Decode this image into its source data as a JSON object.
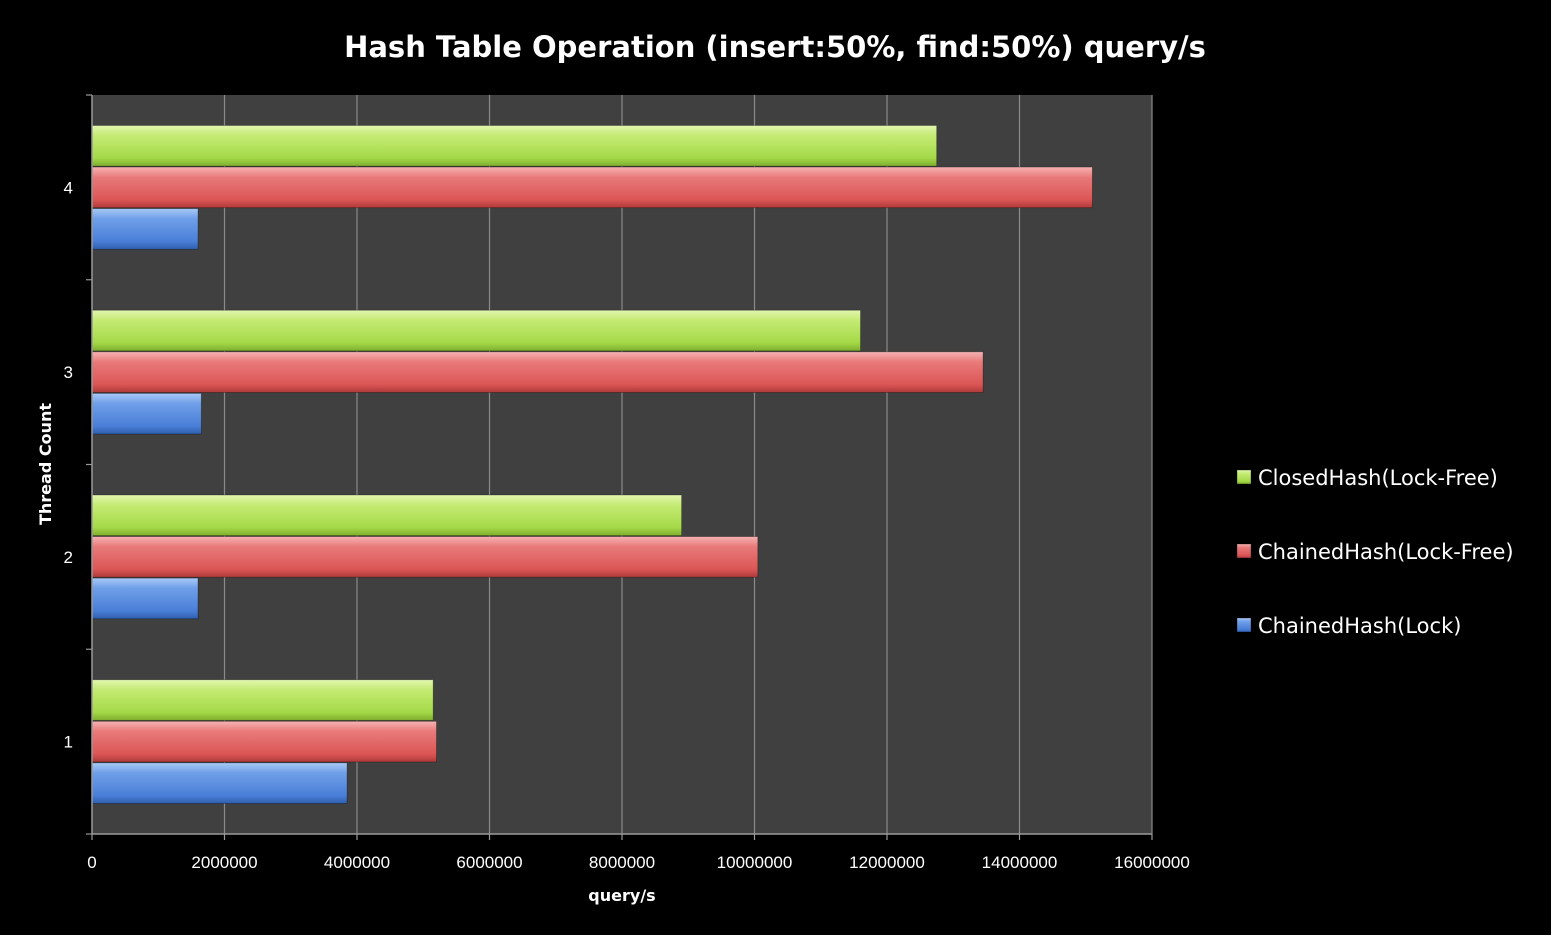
{
  "chart_data": {
    "type": "bar",
    "orientation": "horizontal",
    "title": "Hash Table Operation (insert:50%, find:50%)  query/s",
    "xlabel": "query/s",
    "ylabel": "Thread Count",
    "categories": [
      "1",
      "2",
      "3",
      "4"
    ],
    "xlim": [
      0,
      16000000
    ],
    "xticks": [
      "0",
      "2000000",
      "4000000",
      "6000000",
      "8000000",
      "10000000",
      "12000000",
      "14000000",
      "16000000"
    ],
    "grid": true,
    "legend_position": "right",
    "series": [
      {
        "name": "ChainedHash(Lock)",
        "color": "#4f86e0",
        "values": [
          3850000,
          1600000,
          1650000,
          1600000
        ]
      },
      {
        "name": "ChainedHash(Lock-Free)",
        "color": "#e05a5a",
        "values": [
          5200000,
          10050000,
          13450000,
          15100000
        ]
      },
      {
        "name": "ClosedHash(Lock-Free)",
        "color": "#a8d94a",
        "values": [
          5150000,
          8900000,
          11600000,
          12750000
        ]
      }
    ],
    "legend_order": [
      "ClosedHash(Lock-Free)",
      "ChainedHash(Lock-Free)",
      "ChainedHash(Lock)"
    ]
  }
}
